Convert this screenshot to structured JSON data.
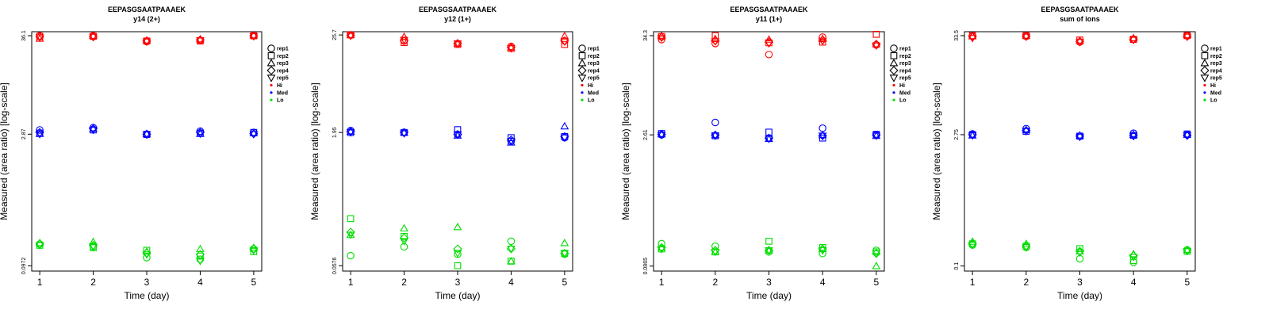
{
  "figure": {
    "panels": [
      {
        "title": "EEPASGSAATPAAAEK",
        "subtitle": "y14 (2+)",
        "xlabel": "Time (day)",
        "ylabel": "Measured (area ratio) [log-scale]",
        "yticks": [
          "0.0972",
          "2.87",
          "36.1"
        ],
        "xticks": [
          "1",
          "2",
          "3",
          "4",
          "5"
        ]
      },
      {
        "title": "EEPASGSAATPAAAEK",
        "subtitle": "y12 (1+)",
        "xlabel": "Time (day)",
        "ylabel": "Measured (area ratio) [log-scale]",
        "yticks": [
          "0.0576",
          "1.95",
          "25.7"
        ],
        "xticks": [
          "1",
          "2",
          "3",
          "4",
          "5"
        ]
      },
      {
        "title": "EEPASGSAATPAAAEK",
        "subtitle": "y11 (1+)",
        "xlabel": "Time (day)",
        "ylabel": "Measured (area ratio) [log-scale]",
        "yticks": [
          "0.0865",
          "2.61",
          "34.3"
        ],
        "xticks": [
          "1",
          "2",
          "3",
          "4",
          "5"
        ]
      },
      {
        "title": "EEPASGSAATPAAAEK",
        "subtitle": "sum of ions",
        "xlabel": "Time (day)",
        "ylabel": "Measured (area ratio) [log-scale]",
        "yticks": [
          "0.1",
          "2.75",
          "33.5"
        ],
        "xticks": [
          "1",
          "2",
          "3",
          "4",
          "5"
        ]
      }
    ],
    "legend": {
      "items": [
        {
          "label": "rep1",
          "marker": "circle"
        },
        {
          "label": "rep2",
          "marker": "square"
        },
        {
          "label": "rep3",
          "marker": "triangle-up"
        },
        {
          "label": "rep4",
          "marker": "diamond"
        },
        {
          "label": "rep5",
          "marker": "triangle-down"
        },
        {
          "label": "Hi",
          "marker": "dot",
          "color": "#ff0000"
        },
        {
          "label": "Med",
          "marker": "dot",
          "color": "#0000ff"
        },
        {
          "label": "Lo",
          "marker": "dot",
          "color": "#00dd00"
        }
      ]
    }
  },
  "chart_data": [
    {
      "type": "scatter",
      "title": "EEPASGSAATPAAAEK",
      "subtitle": "y14 (2+)",
      "xlabel": "Time (day)",
      "ylabel": "Measured (area ratio) [log-scale]",
      "yscale": "log",
      "x": [
        1,
        2,
        3,
        4,
        5
      ],
      "ylim": [
        0.085,
        40
      ],
      "legend_position": "right",
      "colors": {
        "Hi": "#ff0000",
        "Med": "#0000ff",
        "Lo": "#00dd00"
      },
      "series": [
        {
          "level": "Hi",
          "replicate": "rep1",
          "values": [
            36.0,
            36.0,
            31.0,
            32.0,
            36.0
          ]
        },
        {
          "level": "Hi",
          "replicate": "rep2",
          "values": [
            35.5,
            35.5,
            31.5,
            31.5,
            36.0
          ]
        },
        {
          "level": "Hi",
          "replicate": "rep3",
          "values": [
            33.5,
            36.0,
            32.0,
            33.0,
            36.5
          ]
        },
        {
          "level": "Hi",
          "replicate": "rep4",
          "values": [
            35.0,
            35.0,
            31.5,
            32.5,
            36.0
          ]
        },
        {
          "level": "Hi",
          "replicate": "rep5",
          "values": [
            34.5,
            35.0,
            31.0,
            32.0,
            35.5
          ]
        },
        {
          "level": "Med",
          "replicate": "rep1",
          "values": [
            3.2,
            3.4,
            2.87,
            3.1,
            3.0
          ]
        },
        {
          "level": "Med",
          "replicate": "rep2",
          "values": [
            2.95,
            3.2,
            2.85,
            2.95,
            3.0
          ]
        },
        {
          "level": "Med",
          "replicate": "rep3",
          "values": [
            2.9,
            3.3,
            2.9,
            2.9,
            2.95
          ]
        },
        {
          "level": "Med",
          "replicate": "rep4",
          "values": [
            3.0,
            3.3,
            2.85,
            3.0,
            2.9
          ]
        },
        {
          "level": "Med",
          "replicate": "rep5",
          "values": [
            2.87,
            3.2,
            2.85,
            2.9,
            2.87
          ]
        },
        {
          "level": "Lo",
          "replicate": "rep1",
          "values": [
            0.17,
            0.16,
            0.12,
            0.115,
            0.15
          ]
        },
        {
          "level": "Lo",
          "replicate": "rep2",
          "values": [
            0.165,
            0.155,
            0.145,
            0.125,
            0.14
          ]
        },
        {
          "level": "Lo",
          "replicate": "rep3",
          "values": [
            0.175,
            0.18,
            0.14,
            0.15,
            0.155
          ]
        },
        {
          "level": "Lo",
          "replicate": "rep4",
          "values": [
            0.17,
            0.165,
            0.135,
            0.13,
            0.15
          ]
        },
        {
          "level": "Lo",
          "replicate": "rep5",
          "values": [
            0.165,
            0.16,
            0.13,
            0.11,
            0.145
          ]
        }
      ]
    },
    {
      "type": "scatter",
      "title": "EEPASGSAATPAAAEK",
      "subtitle": "y12 (1+)",
      "xlabel": "Time (day)",
      "ylabel": "Measured (area ratio) [log-scale]",
      "yscale": "log",
      "x": [
        1,
        2,
        3,
        4,
        5
      ],
      "ylim": [
        0.05,
        28
      ],
      "legend_position": "right",
      "colors": {
        "Hi": "#ff0000",
        "Med": "#0000ff",
        "Lo": "#00dd00"
      },
      "series": [
        {
          "level": "Hi",
          "replicate": "rep1",
          "values": [
            25.7,
            22.0,
            20.5,
            19.0,
            22.0
          ]
        },
        {
          "level": "Hi",
          "replicate": "rep2",
          "values": [
            25.7,
            21.0,
            20.0,
            18.0,
            20.0
          ]
        },
        {
          "level": "Hi",
          "replicate": "rep3",
          "values": [
            25.7,
            24.5,
            20.5,
            18.5,
            25.0
          ]
        },
        {
          "level": "Hi",
          "replicate": "rep4",
          "values": [
            25.5,
            22.0,
            20.5,
            18.5,
            22.0
          ]
        },
        {
          "level": "Hi",
          "replicate": "rep5",
          "values": [
            25.0,
            22.5,
            20.5,
            18.0,
            21.5
          ]
        },
        {
          "level": "Med",
          "replicate": "rep1",
          "values": [
            2.05,
            1.95,
            1.85,
            1.55,
            1.7
          ]
        },
        {
          "level": "Med",
          "replicate": "rep2",
          "values": [
            1.95,
            1.95,
            2.1,
            1.7,
            1.75
          ]
        },
        {
          "level": "Med",
          "replicate": "rep3",
          "values": [
            2.0,
            1.95,
            1.8,
            1.5,
            2.3
          ]
        },
        {
          "level": "Med",
          "replicate": "rep4",
          "values": [
            2.0,
            1.95,
            1.85,
            1.6,
            1.75
          ]
        },
        {
          "level": "Med",
          "replicate": "rep5",
          "values": [
            1.95,
            1.9,
            1.85,
            1.55,
            1.7
          ]
        },
        {
          "level": "Lo",
          "replicate": "rep1",
          "values": [
            0.075,
            0.095,
            0.078,
            0.11,
            0.078
          ]
        },
        {
          "level": "Lo",
          "replicate": "rep2",
          "values": [
            0.2,
            0.125,
            0.0576,
            0.065,
            0.08
          ]
        },
        {
          "level": "Lo",
          "replicate": "rep3",
          "values": [
            0.13,
            0.155,
            0.16,
            0.065,
            0.105
          ]
        },
        {
          "level": "Lo",
          "replicate": "rep4",
          "values": [
            0.14,
            0.12,
            0.09,
            0.09,
            0.08
          ]
        },
        {
          "level": "Lo",
          "replicate": "rep5",
          "values": [
            0.13,
            0.11,
            0.08,
            0.09,
            0.08
          ]
        }
      ]
    },
    {
      "type": "scatter",
      "title": "EEPASGSAATPAAAEK",
      "subtitle": "y11 (1+)",
      "xlabel": "Time (day)",
      "ylabel": "Measured (area ratio) [log-scale]",
      "yscale": "log",
      "x": [
        1,
        2,
        3,
        4,
        5
      ],
      "ylim": [
        0.076,
        38
      ],
      "legend_position": "right",
      "colors": {
        "Hi": "#ff0000",
        "Med": "#0000ff",
        "Lo": "#00dd00"
      },
      "series": [
        {
          "level": "Hi",
          "replicate": "rep1",
          "values": [
            31.0,
            28.0,
            21.0,
            33.0,
            27.0
          ]
        },
        {
          "level": "Hi",
          "replicate": "rep2",
          "values": [
            33.5,
            34.3,
            28.5,
            29.0,
            35.5
          ]
        },
        {
          "level": "Hi",
          "replicate": "rep3",
          "values": [
            34.3,
            31.5,
            31.0,
            31.5,
            27.5
          ]
        },
        {
          "level": "Hi",
          "replicate": "rep4",
          "values": [
            33.0,
            30.0,
            29.0,
            30.5,
            27.5
          ]
        },
        {
          "level": "Hi",
          "replicate": "rep5",
          "values": [
            32.5,
            29.5,
            28.0,
            30.0,
            26.5
          ]
        },
        {
          "level": "Med",
          "replicate": "rep1",
          "values": [
            2.61,
            3.6,
            2.4,
            3.1,
            2.6
          ]
        },
        {
          "level": "Med",
          "replicate": "rep2",
          "values": [
            2.7,
            2.55,
            2.8,
            2.4,
            2.65
          ]
        },
        {
          "level": "Med",
          "replicate": "rep3",
          "values": [
            2.65,
            2.6,
            2.35,
            2.6,
            2.55
          ]
        },
        {
          "level": "Med",
          "replicate": "rep4",
          "values": [
            2.65,
            2.6,
            2.4,
            2.55,
            2.6
          ]
        },
        {
          "level": "Med",
          "replicate": "rep5",
          "values": [
            2.6,
            2.55,
            2.35,
            2.55,
            2.55
          ]
        },
        {
          "level": "Lo",
          "replicate": "rep1",
          "values": [
            0.155,
            0.145,
            0.125,
            0.12,
            0.13
          ]
        },
        {
          "level": "Lo",
          "replicate": "rep2",
          "values": [
            0.135,
            0.125,
            0.165,
            0.14,
            0.125
          ]
        },
        {
          "level": "Lo",
          "replicate": "rep3",
          "values": [
            0.14,
            0.125,
            0.13,
            0.135,
            0.0865
          ]
        },
        {
          "level": "Lo",
          "replicate": "rep4",
          "values": [
            0.14,
            0.13,
            0.13,
            0.135,
            0.12
          ]
        },
        {
          "level": "Lo",
          "replicate": "rep5",
          "values": [
            0.135,
            0.125,
            0.13,
            0.13,
            0.12
          ]
        }
      ]
    },
    {
      "type": "scatter",
      "title": "EEPASGSAATPAAAEK",
      "subtitle": "sum of ions",
      "xlabel": "Time (day)",
      "ylabel": "Measured (area ratio) [log-scale]",
      "yscale": "log",
      "x": [
        1,
        2,
        3,
        4,
        5
      ],
      "ylim": [
        0.088,
        37
      ],
      "legend_position": "right",
      "colors": {
        "Hi": "#ff0000",
        "Med": "#0000ff",
        "Lo": "#00dd00"
      },
      "series": [
        {
          "level": "Hi",
          "replicate": "rep1",
          "values": [
            33.0,
            33.0,
            28.5,
            30.5,
            33.5
          ]
        },
        {
          "level": "Hi",
          "replicate": "rep2",
          "values": [
            33.5,
            33.5,
            30.0,
            30.5,
            33.5
          ]
        },
        {
          "level": "Hi",
          "replicate": "rep3",
          "values": [
            33.0,
            33.5,
            29.5,
            31.5,
            34.0
          ]
        },
        {
          "level": "Hi",
          "replicate": "rep4",
          "values": [
            32.5,
            33.0,
            29.0,
            30.5,
            33.0
          ]
        },
        {
          "level": "Hi",
          "replicate": "rep5",
          "values": [
            31.5,
            32.5,
            28.5,
            30.0,
            32.5
          ]
        },
        {
          "level": "Med",
          "replicate": "rep1",
          "values": [
            2.8,
            3.2,
            2.65,
            2.85,
            2.75
          ]
        },
        {
          "level": "Med",
          "replicate": "rep2",
          "values": [
            2.75,
            3.0,
            2.65,
            2.7,
            2.8
          ]
        },
        {
          "level": "Med",
          "replicate": "rep3",
          "values": [
            2.7,
            3.1,
            2.7,
            2.75,
            2.75
          ]
        },
        {
          "level": "Med",
          "replicate": "rep4",
          "values": [
            2.75,
            3.05,
            2.65,
            2.7,
            2.7
          ]
        },
        {
          "level": "Med",
          "replicate": "rep5",
          "values": [
            2.7,
            3.0,
            2.6,
            2.65,
            2.7
          ]
        },
        {
          "level": "Lo",
          "replicate": "rep1",
          "values": [
            0.17,
            0.16,
            0.12,
            0.11,
            0.15
          ]
        },
        {
          "level": "Lo",
          "replicate": "rep2",
          "values": [
            0.175,
            0.165,
            0.155,
            0.115,
            0.145
          ]
        },
        {
          "level": "Lo",
          "replicate": "rep3",
          "values": [
            0.185,
            0.175,
            0.145,
            0.135,
            0.15
          ]
        },
        {
          "level": "Lo",
          "replicate": "rep4",
          "values": [
            0.175,
            0.165,
            0.145,
            0.13,
            0.15
          ]
        },
        {
          "level": "Lo",
          "replicate": "rep5",
          "values": [
            0.17,
            0.16,
            0.14,
            0.125,
            0.145
          ]
        }
      ]
    }
  ]
}
